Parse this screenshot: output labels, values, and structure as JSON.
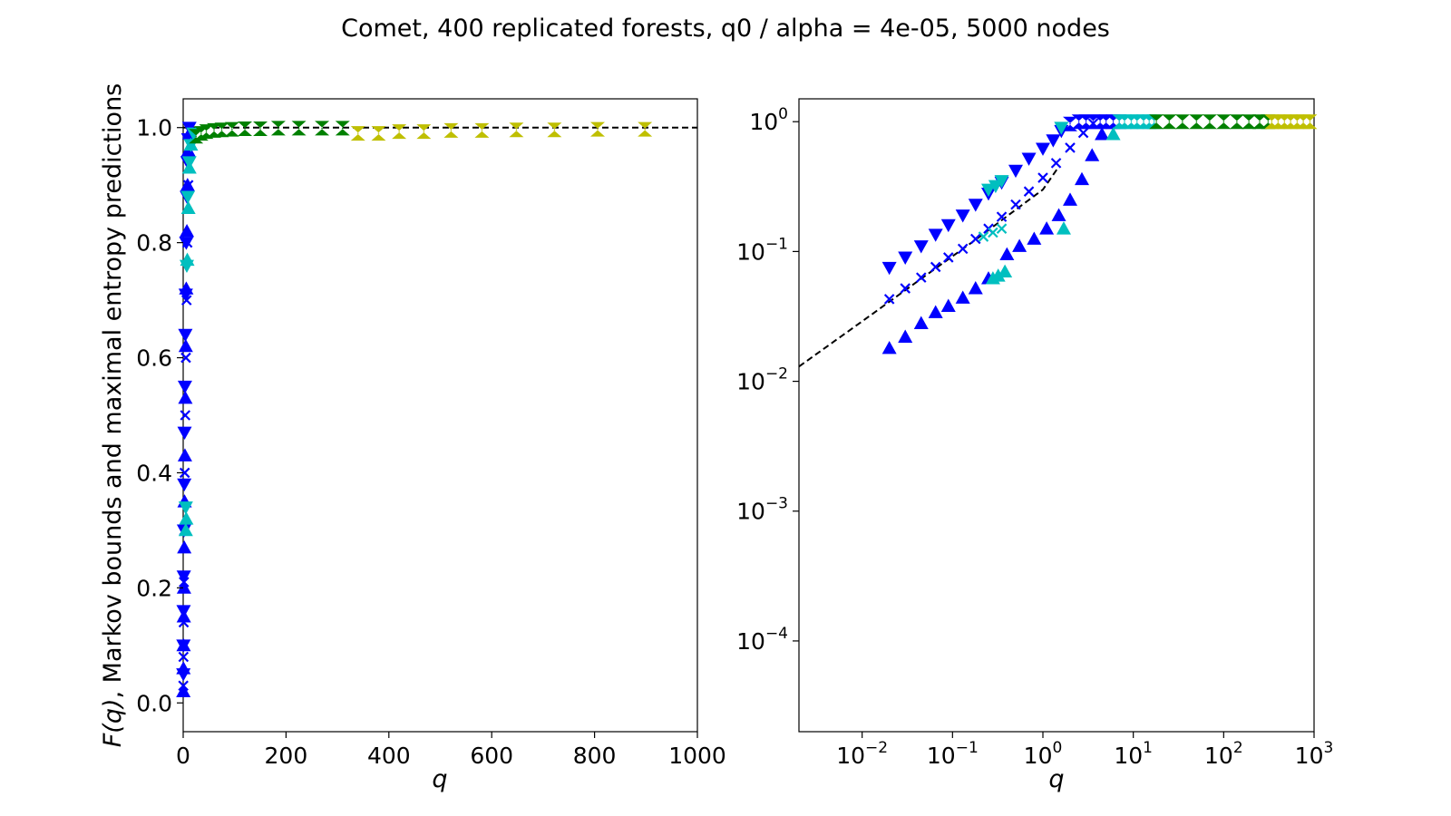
{
  "title": "Comet, 400 replicated forests, q0 / alpha = 4e-05, 5000 nodes",
  "colors": {
    "blue": "#0000ff",
    "cyan": "#00bfbf",
    "green": "#008000",
    "yellow": "#bfbf00",
    "dashed": "#000000"
  },
  "chart_data": [
    {
      "type": "scatter",
      "xscale": "linear",
      "yscale": "linear",
      "xlabel": "q",
      "ylabel": "F(q), Markov bounds and maximal entropy predictions",
      "xlim": [
        0,
        1000
      ],
      "ylim": [
        -0.05,
        1.05
      ],
      "xticks": [
        0,
        200,
        400,
        600,
        800,
        1000
      ],
      "xtick_labels": [
        "0",
        "200",
        "400",
        "600",
        "800",
        "1000"
      ],
      "yticks": [
        0.0,
        0.2,
        0.4,
        0.6,
        0.8,
        1.0
      ],
      "ytick_labels": [
        "0.0",
        "0.2",
        "0.4",
        "0.6",
        "0.8",
        "1.0"
      ],
      "reference_line": {
        "style": "dashed",
        "x": [
          0,
          1000
        ],
        "y": [
          1.0,
          1.0
        ]
      },
      "series": [
        {
          "color": "blue",
          "marker": "triangle-up",
          "x": [
            0.3,
            0.5,
            0.8,
            1.2,
            1.6,
            2.1,
            2.7,
            3.4,
            4.2,
            5.0,
            6.0,
            7.2,
            8.5,
            10,
            12
          ],
          "y": [
            0.02,
            0.06,
            0.1,
            0.15,
            0.2,
            0.27,
            0.35,
            0.43,
            0.53,
            0.62,
            0.72,
            0.82,
            0.9,
            0.96,
            0.99
          ]
        },
        {
          "color": "blue",
          "marker": "triangle-down",
          "x": [
            0.3,
            0.5,
            0.8,
            1.2,
            1.6,
            2.1,
            2.7,
            3.4,
            4.2,
            5.0,
            6.0,
            7.2,
            8.5,
            10,
            12
          ],
          "y": [
            0.05,
            0.1,
            0.16,
            0.22,
            0.3,
            0.38,
            0.47,
            0.55,
            0.64,
            0.71,
            0.8,
            0.88,
            0.94,
            0.98,
            1.0
          ]
        },
        {
          "color": "blue",
          "marker": "x",
          "x": [
            0.3,
            0.6,
            1.0,
            1.5,
            2.2,
            3.0,
            4.0,
            5.2,
            6.6,
            8.2,
            10
          ],
          "y": [
            0.03,
            0.08,
            0.14,
            0.21,
            0.3,
            0.4,
            0.5,
            0.6,
            0.7,
            0.8,
            0.9
          ]
        },
        {
          "color": "cyan",
          "marker": "triangle-up",
          "x": [
            5,
            6,
            8,
            10,
            12,
            15
          ],
          "y": [
            0.3,
            0.32,
            0.77,
            0.86,
            0.93,
            0.97
          ]
        },
        {
          "color": "cyan",
          "marker": "triangle-down",
          "x": [
            5,
            7,
            9,
            12,
            15,
            20
          ],
          "y": [
            0.34,
            0.76,
            0.88,
            0.94,
            0.97,
            0.99
          ]
        },
        {
          "color": "green",
          "marker": "hourglass",
          "x": [
            25,
            35,
            45,
            60,
            75,
            95,
            120,
            150,
            185,
            225,
            270,
            310
          ],
          "y": [
            0.985,
            0.99,
            0.993,
            0.995,
            0.996,
            0.997,
            0.998,
            0.998,
            0.999,
            0.999,
            0.999,
            0.999
          ]
        },
        {
          "color": "yellow",
          "marker": "hourglass",
          "x": [
            340,
            380,
            420,
            468,
            521,
            581,
            648,
            722,
            806,
            898
          ],
          "y": [
            0.99,
            0.99,
            0.993,
            0.993,
            0.995,
            0.995,
            0.996,
            0.996,
            0.997,
            0.997
          ]
        }
      ]
    },
    {
      "type": "scatter",
      "xscale": "log",
      "yscale": "log",
      "xlabel": "q",
      "xlim": [
        0.002,
        1000
      ],
      "ylim": [
        2e-05,
        1.5
      ],
      "xticks": [
        0.01,
        0.1,
        1,
        10,
        100,
        1000
      ],
      "xtick_labels": [
        {
          "base": "10",
          "exp": "−2"
        },
        {
          "base": "10",
          "exp": "−1"
        },
        {
          "base": "10",
          "exp": "0"
        },
        {
          "base": "10",
          "exp": "1"
        },
        {
          "base": "10",
          "exp": "2"
        },
        {
          "base": "10",
          "exp": "3"
        }
      ],
      "yticks": [
        0.0001,
        0.001,
        0.01,
        0.1,
        1
      ],
      "ytick_labels": [
        {
          "base": "10",
          "exp": "−4"
        },
        {
          "base": "10",
          "exp": "−3"
        },
        {
          "base": "10",
          "exp": "−2"
        },
        {
          "base": "10",
          "exp": "−1"
        },
        {
          "base": "10",
          "exp": "0"
        }
      ],
      "reference_line": {
        "style": "dashed",
        "x": [
          0.002,
          0.01,
          0.05,
          0.2,
          0.5,
          1.0,
          1.5
        ],
        "y": [
          0.013,
          0.029,
          0.065,
          0.13,
          0.21,
          0.3,
          0.45
        ]
      },
      "series": [
        {
          "color": "blue",
          "marker": "triangle-down",
          "x": [
            0.02,
            0.03,
            0.045,
            0.065,
            0.09,
            0.13,
            0.18,
            0.25,
            0.35,
            0.5,
            0.7,
            1.0,
            1.3,
            1.6
          ],
          "y": [
            0.075,
            0.09,
            0.11,
            0.135,
            0.16,
            0.19,
            0.23,
            0.28,
            0.34,
            0.42,
            0.52,
            0.62,
            0.72,
            0.85
          ]
        },
        {
          "color": "blue",
          "marker": "x",
          "x": [
            0.02,
            0.03,
            0.045,
            0.065,
            0.09,
            0.13,
            0.18,
            0.25,
            0.35,
            0.5,
            0.7,
            1.0,
            1.4,
            2.0,
            2.8,
            3.6
          ],
          "y": [
            0.043,
            0.052,
            0.063,
            0.076,
            0.09,
            0.105,
            0.125,
            0.15,
            0.185,
            0.23,
            0.29,
            0.37,
            0.48,
            0.63,
            0.82,
            0.97
          ]
        },
        {
          "color": "blue",
          "marker": "triangle-up",
          "x": [
            0.02,
            0.03,
            0.045,
            0.065,
            0.09,
            0.13,
            0.18,
            0.25,
            0.4,
            0.55,
            0.8,
            1.1,
            1.5,
            2.0,
            2.7,
            3.5,
            4.5
          ],
          "y": [
            0.018,
            0.022,
            0.028,
            0.034,
            0.038,
            0.044,
            0.052,
            0.062,
            0.095,
            0.11,
            0.125,
            0.15,
            0.19,
            0.25,
            0.36,
            0.55,
            0.8
          ]
        },
        {
          "color": "blue",
          "marker": "hourglass",
          "x": [
            2.0,
            2.5,
            3.0,
            3.6,
            4.3,
            5.0,
            6.0,
            7.0
          ],
          "y": [
            0.96,
            1.0,
            1.0,
            1.0,
            1.0,
            1.0,
            1.0,
            1.0
          ]
        },
        {
          "color": "cyan",
          "marker": "triangle-down",
          "x": [
            0.25,
            0.3,
            0.35,
            1.6
          ],
          "y": [
            0.3,
            0.32,
            0.35,
            0.9
          ]
        },
        {
          "color": "cyan",
          "marker": "triangle-up",
          "x": [
            0.28,
            0.32,
            0.38,
            1.7,
            6.0
          ],
          "y": [
            0.062,
            0.065,
            0.07,
            0.15,
            0.8
          ]
        },
        {
          "color": "cyan",
          "marker": "x",
          "x": [
            0.22,
            0.28,
            0.35
          ],
          "y": [
            0.13,
            0.14,
            0.15
          ]
        },
        {
          "color": "cyan",
          "marker": "hourglass",
          "x": [
            7.0,
            8.0,
            9.5,
            11,
            13,
            15,
            17
          ],
          "y": [
            1.0,
            1.0,
            1.0,
            1.0,
            1.0,
            1.0,
            1.0
          ]
        },
        {
          "color": "green",
          "marker": "hourglass",
          "x": [
            18,
            25,
            35,
            50,
            70,
            100,
            140,
            190,
            250,
            310
          ],
          "y": [
            1.0,
            1.0,
            1.0,
            1.0,
            1.0,
            1.0,
            1.0,
            1.0,
            1.0,
            1.0
          ]
        },
        {
          "color": "yellow",
          "marker": "hourglass",
          "x": [
            340,
            400,
            470,
            550,
            650,
            760,
            900
          ],
          "y": [
            1.0,
            1.0,
            1.0,
            1.0,
            1.0,
            1.0,
            1.0
          ]
        }
      ]
    }
  ]
}
